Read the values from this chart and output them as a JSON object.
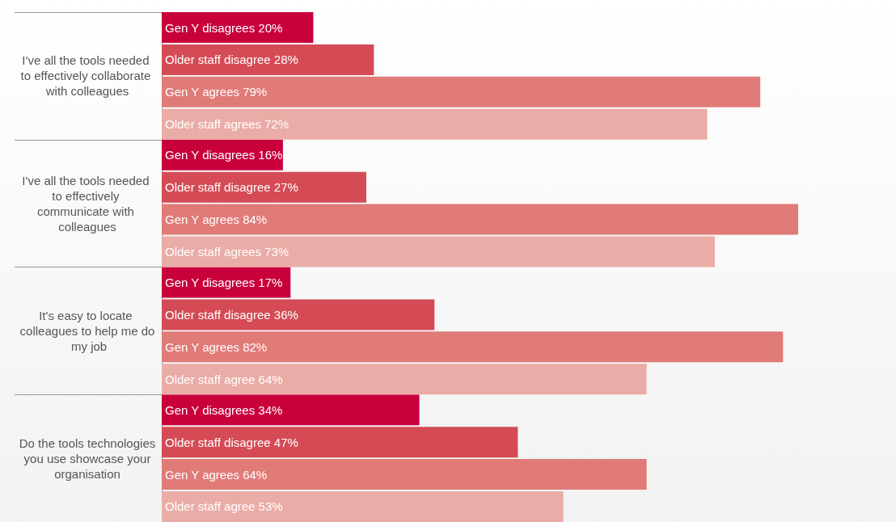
{
  "chart_data": {
    "type": "bar",
    "orientation": "horizontal",
    "categories": [
      "I've all the tools needed to effectively collaborate with colleagues",
      "I've all the tools needed to effectively communicate with colleagues",
      "It's easy to locate colleagues to help me do my job",
      "Do the tools technologies you use showcase your organisation"
    ],
    "series": [
      {
        "color": "#c8003c",
        "values": [
          20,
          16,
          17,
          34
        ],
        "value_labels": [
          "Gen Y disagrees 20%",
          "Gen Y disagrees 16%",
          "Gen Y disagrees 17%",
          "Gen Y disagrees 34%"
        ]
      },
      {
        "color": "#d44b55",
        "values": [
          28,
          27,
          36,
          47
        ],
        "value_labels": [
          "Older staff disagree 28%",
          "Older staff disagree 27%",
          "Older staff disagree 36%",
          "Older staff disagree 47%"
        ]
      },
      {
        "color": "#e07b78",
        "values": [
          79,
          84,
          82,
          64
        ],
        "value_labels": [
          "Gen Y agrees 79%",
          "Gen Y agrees 84%",
          "Gen Y agrees 82%",
          "Gen Y agrees 64%"
        ]
      },
      {
        "color": "#eaaca6",
        "values": [
          72,
          73,
          64,
          53
        ],
        "value_labels": [
          "Older staff agrees 72%",
          "Older staff agrees 73%",
          "Older staff agree 64%",
          "Older staff agree 53%"
        ]
      }
    ]
  }
}
